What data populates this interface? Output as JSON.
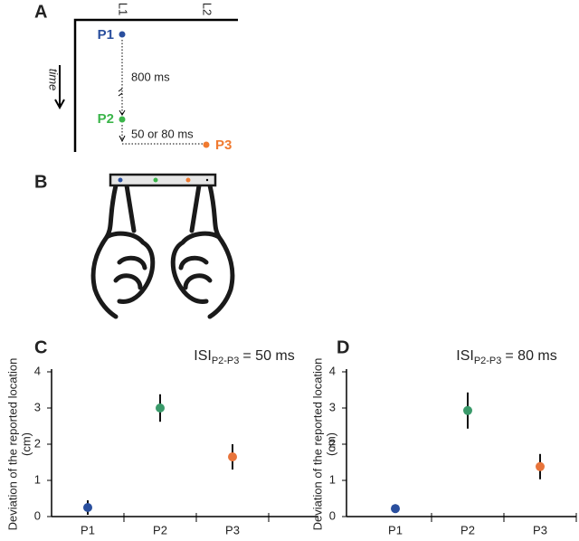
{
  "panel_labels": [
    "A",
    "B",
    "C",
    "D"
  ],
  "diagram": {
    "locations": [
      "L1",
      "L2"
    ],
    "points": [
      "P1",
      "P2",
      "P3"
    ],
    "time": "time",
    "interval_1": "800 ms",
    "interval_2": "50 or 80 ms"
  },
  "chart_data": [
    {
      "type": "errorbar",
      "title": "ISI",
      "title_subscript": "P2-P3",
      "title_suffix": "= 50 ms",
      "ylabel": [
        "Deviation of the reported location",
        "(cm)"
      ],
      "categories": [
        "P1",
        "P2",
        "P3"
      ],
      "values": [
        0.25,
        3.0,
        1.65
      ],
      "errors": [
        0.2,
        0.38,
        0.35
      ],
      "colors": [
        "#2a4f9e",
        "#3a9a6a",
        "#e8743b"
      ],
      "ylim": [
        0,
        4
      ],
      "yticks": [
        0,
        1,
        2,
        3,
        4
      ]
    },
    {
      "type": "errorbar",
      "title": "ISI",
      "title_subscript": "P2-P3",
      "title_suffix": "= 80 ms",
      "ylabel": [
        "Deviation of the reported location",
        "(cm)"
      ],
      "categories": [
        "P1",
        "P2",
        "P3"
      ],
      "values": [
        0.22,
        2.93,
        1.38
      ],
      "errors": [
        0.12,
        0.5,
        0.35
      ],
      "colors": [
        "#2a4f9e",
        "#3a9a6a",
        "#e8743b"
      ],
      "ylim": [
        0,
        4
      ],
      "yticks": [
        0,
        1,
        2,
        3,
        4
      ]
    }
  ]
}
